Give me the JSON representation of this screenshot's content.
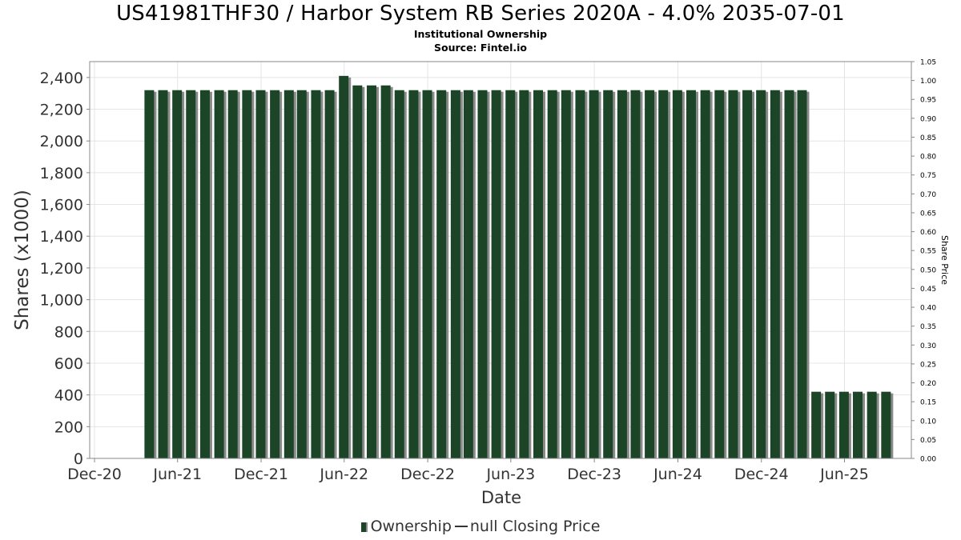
{
  "header": {
    "title": "US41981THF30 / Harbor System RB Series 2020A - 4.0% 2035-07-01",
    "subtitle": "Institutional Ownership",
    "source": "Source: Fintel.io"
  },
  "legend": {
    "ownership_label": "Ownership",
    "price_label": "null Closing Price"
  },
  "colors": {
    "bar": "#1b4526",
    "bar_shadow": "#8a8a8a",
    "grid": "#e4e4e4",
    "axis": "#888888"
  },
  "chart_data": {
    "type": "bar",
    "title": "US41981THF30 / Harbor System RB Series 2020A - 4.0% 2035-07-01",
    "subtitle": "Institutional Ownership",
    "xlabel": "Date",
    "ylabel": "Shares (x1000)",
    "y2label": "Share Price",
    "ylim": [
      0,
      2500
    ],
    "y2lim": [
      0,
      1.05
    ],
    "x_range": [
      "2020-12-01",
      "2025-10-15"
    ],
    "xticks": [
      "Dec-20",
      "Jun-21",
      "Dec-21",
      "Jun-22",
      "Dec-22",
      "Jun-23",
      "Dec-23",
      "Jun-24",
      "Dec-24",
      "Jun-25"
    ],
    "yticks": [
      "0",
      "200",
      "400",
      "600",
      "800",
      "1,000",
      "1,200",
      "1,400",
      "1,600",
      "1,800",
      "2,000",
      "2,200",
      "2,400"
    ],
    "y2ticks": [
      "0.00",
      "0.05",
      "0.10",
      "0.15",
      "0.20",
      "0.25",
      "0.30",
      "0.35",
      "0.40",
      "0.45",
      "0.50",
      "0.55",
      "0.60",
      "0.65",
      "0.70",
      "0.75",
      "0.80",
      "0.85",
      "0.90",
      "0.95",
      "1.00",
      "1.05"
    ],
    "grid": true,
    "legend_position": "bottom",
    "series": [
      {
        "name": "Ownership",
        "x": [
          "2021-03-31",
          "2021-04-30",
          "2021-05-31",
          "2021-06-30",
          "2021-07-31",
          "2021-08-31",
          "2021-09-30",
          "2021-10-31",
          "2021-11-30",
          "2021-12-31",
          "2022-01-31",
          "2022-02-28",
          "2022-03-31",
          "2022-04-30",
          "2022-05-31",
          "2022-06-30",
          "2022-07-31",
          "2022-08-31",
          "2022-09-30",
          "2022-10-31",
          "2022-11-30",
          "2022-12-31",
          "2023-01-31",
          "2023-02-28",
          "2023-03-31",
          "2023-04-30",
          "2023-05-31",
          "2023-06-30",
          "2023-07-31",
          "2023-08-31",
          "2023-09-30",
          "2023-10-31",
          "2023-11-30",
          "2023-12-31",
          "2024-01-31",
          "2024-02-29",
          "2024-03-31",
          "2024-04-30",
          "2024-05-31",
          "2024-06-30",
          "2024-07-31",
          "2024-08-31",
          "2024-09-30",
          "2024-10-31",
          "2024-11-30",
          "2024-12-31",
          "2025-01-31",
          "2025-02-28",
          "2025-03-31",
          "2025-04-30",
          "2025-05-31",
          "2025-06-30",
          "2025-07-31",
          "2025-08-31"
        ],
        "values": [
          2320,
          2320,
          2320,
          2320,
          2320,
          2320,
          2320,
          2320,
          2320,
          2320,
          2320,
          2320,
          2320,
          2320,
          2410,
          2350,
          2350,
          2350,
          2320,
          2320,
          2320,
          2320,
          2320,
          2320,
          2320,
          2320,
          2320,
          2320,
          2320,
          2320,
          2320,
          2320,
          2320,
          2320,
          2320,
          2320,
          2320,
          2320,
          2320,
          2320,
          2320,
          2320,
          2320,
          2320,
          2320,
          2320,
          2320,
          2320,
          420,
          420,
          420,
          420,
          420,
          420
        ]
      }
    ]
  }
}
